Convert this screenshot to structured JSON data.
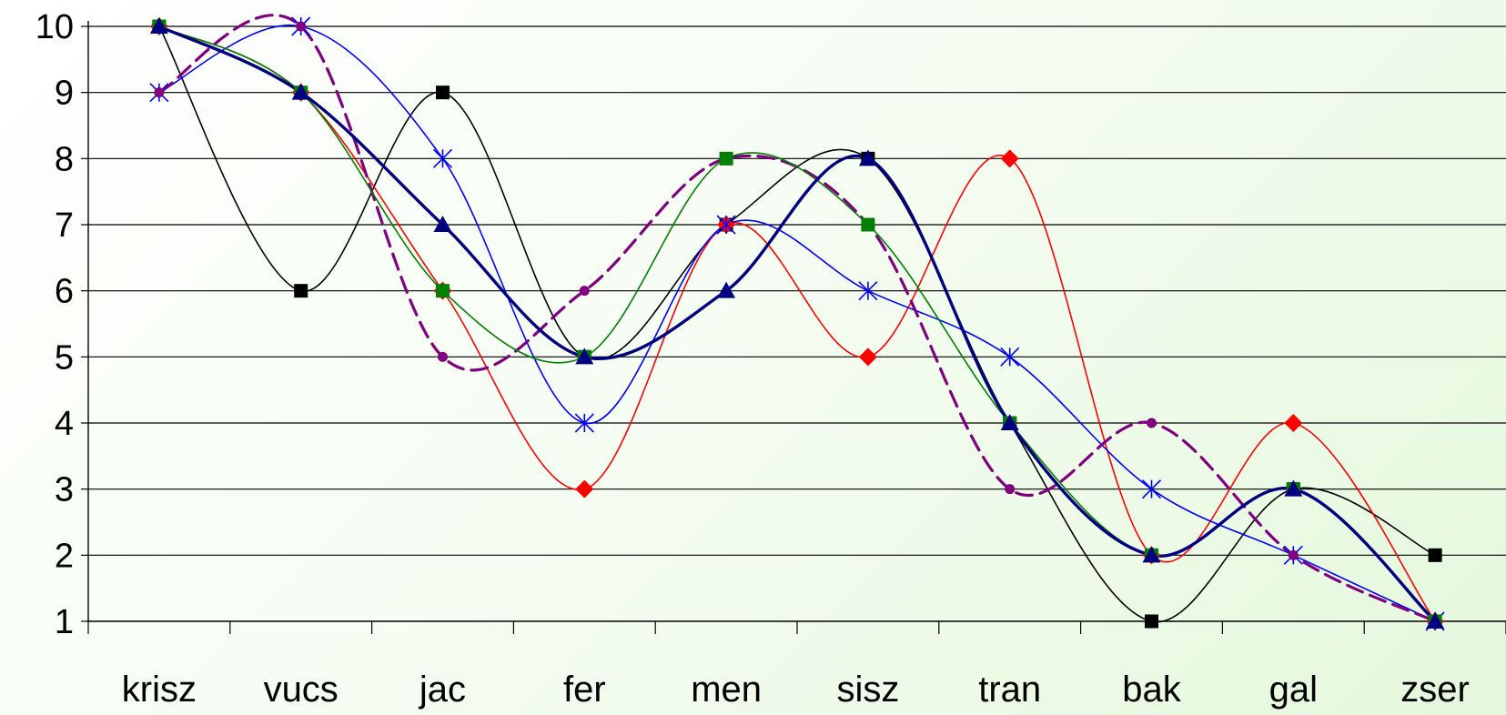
{
  "chart_data": {
    "type": "line",
    "smooth": true,
    "categories": [
      "krisz",
      "vucs",
      "jac",
      "fer",
      "men",
      "sisz",
      "tran",
      "bak",
      "gal",
      "zser"
    ],
    "ylim": [
      1,
      10
    ],
    "yticks": [
      "1",
      "2",
      "3",
      "4",
      "5",
      "6",
      "7",
      "8",
      "9",
      "10"
    ],
    "grid": true,
    "legend": "none",
    "series": [
      {
        "color": "#000000",
        "marker": "square",
        "line_style": "solid",
        "values": [
          10,
          6,
          9,
          5,
          7,
          8,
          4,
          1,
          3,
          2
        ]
      },
      {
        "color": "#ff0000",
        "marker": "diamond",
        "line_style": "solid",
        "values": [
          10,
          9,
          6,
          3,
          7,
          5,
          8,
          2,
          4,
          1
        ]
      },
      {
        "color": "#0000ff",
        "marker": "asterisk",
        "line_style": "solid",
        "values": [
          9,
          10,
          8,
          4,
          7,
          6,
          5,
          3,
          2,
          1
        ]
      },
      {
        "color": "#800080",
        "marker": "circle",
        "line_style": "dashed",
        "values": [
          9,
          10,
          5,
          6,
          8,
          7,
          3,
          4,
          2,
          1
        ]
      },
      {
        "color": "#008000",
        "marker": "square",
        "line_style": "solid",
        "values": [
          10,
          9,
          6,
          5,
          8,
          7,
          4,
          2,
          3,
          1
        ]
      },
      {
        "color": "#000080",
        "marker": "triangle",
        "line_style": "thick",
        "values": [
          10,
          9,
          7,
          5,
          6,
          8,
          4,
          2,
          3,
          1
        ]
      }
    ]
  }
}
